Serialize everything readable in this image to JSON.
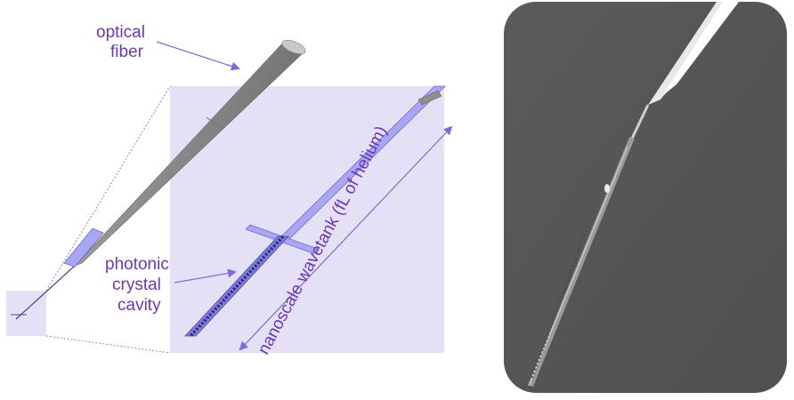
{
  "labels": {
    "optical_fiber_line1": "optical",
    "optical_fiber_line2": "fiber",
    "photonic_line1": "photonic",
    "photonic_line2": "crystal",
    "photonic_line3": "cavity",
    "wavetank": "nanoscale wavetank (fL of helium)"
  },
  "colors": {
    "label": "#6a39b3",
    "arrow": "#7d6bd6",
    "highlight_box": "#e4e1f7",
    "waveguide": "#a9a7f2",
    "fiber_gray": "#8e8e8e",
    "micrograph_bg": "#5a5a5a"
  }
}
